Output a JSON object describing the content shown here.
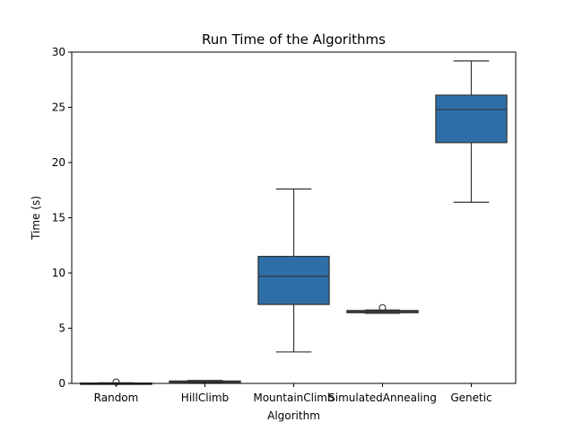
{
  "chart_data": {
    "type": "box",
    "title": "Run Time of the Algorithms",
    "xlabel": "Algorithm",
    "ylabel": "Time (s)",
    "ylim": [
      0,
      30
    ],
    "yticks": [
      0,
      5,
      10,
      15,
      20,
      25,
      30
    ],
    "grid": false,
    "box_color": "#2e6ea6",
    "line_color": "#333333",
    "categories": [
      "Random",
      "HillClimb",
      "MountainClimb",
      "SimulatedAnnealing",
      "Genetic"
    ],
    "boxes": [
      {
        "name": "Random",
        "whisker_low": 0.0,
        "q1": 0.0,
        "median": 0.02,
        "q3": 0.03,
        "whisker_high": 0.05,
        "outliers": [
          0.12
        ]
      },
      {
        "name": "HillClimb",
        "whisker_low": 0.05,
        "q1": 0.1,
        "median": 0.17,
        "q3": 0.22,
        "whisker_high": 0.27,
        "outliers": []
      },
      {
        "name": "MountainClimb",
        "whisker_low": 2.85,
        "q1": 7.15,
        "median": 9.7,
        "q3": 11.5,
        "whisker_high": 17.6,
        "outliers": []
      },
      {
        "name": "SimulatedAnnealing",
        "whisker_low": 6.35,
        "q1": 6.4,
        "median": 6.5,
        "q3": 6.6,
        "whisker_high": 6.65,
        "outliers": [
          6.85
        ]
      },
      {
        "name": "Genetic",
        "whisker_low": 16.4,
        "q1": 21.8,
        "median": 24.8,
        "q3": 26.1,
        "whisker_high": 29.2,
        "outliers": []
      }
    ]
  }
}
